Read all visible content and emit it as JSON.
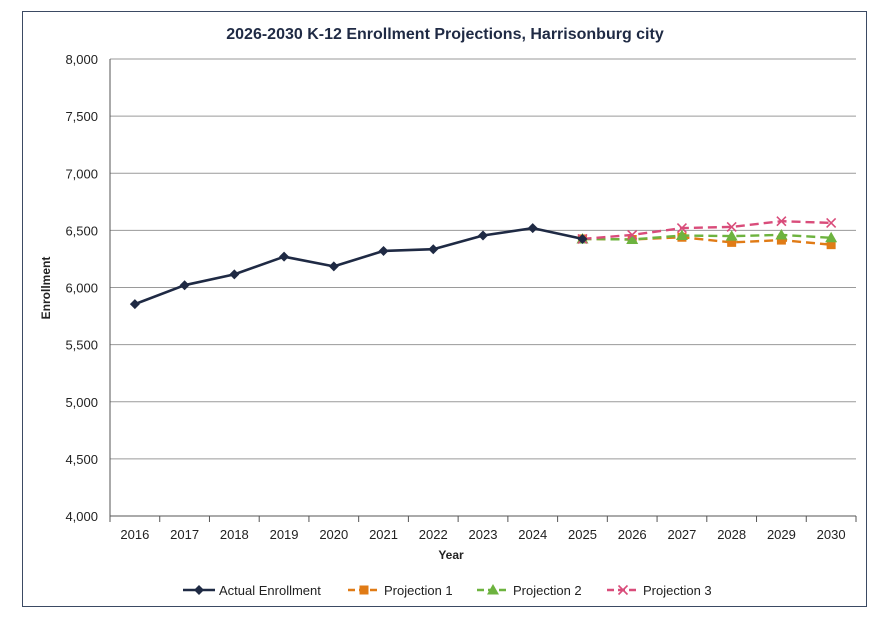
{
  "chart_data": {
    "type": "line",
    "title": "2026-2030 K-12 Enrollment Projections, Harrisonburg city",
    "xlabel": "Year",
    "ylabel": "Enrollment",
    "ylim": [
      4000,
      8000
    ],
    "y_ticks": [
      4000,
      4500,
      5000,
      5500,
      6000,
      6500,
      7000,
      7500,
      8000
    ],
    "y_tick_labels": [
      "4,000",
      "4,500",
      "5,000",
      "5,500",
      "6,000",
      "6,500",
      "7,000",
      "7,500",
      "8,000"
    ],
    "categories": [
      "2016",
      "2017",
      "2018",
      "2019",
      "2020",
      "2021",
      "2022",
      "2023",
      "2024",
      "2025",
      "2026",
      "2027",
      "2028",
      "2029",
      "2030"
    ],
    "grid": true,
    "legend_position": "bottom",
    "series": [
      {
        "name": "Actual Enrollment",
        "color": "#1f2a44",
        "dash": "solid",
        "marker": "diamond",
        "values": [
          5855,
          6020,
          6115,
          6270,
          6185,
          6320,
          6335,
          6455,
          6520,
          6425,
          null,
          null,
          null,
          null,
          null
        ]
      },
      {
        "name": "Projection 1",
        "color": "#e07b16",
        "dash": "dashed",
        "marker": "square",
        "values": [
          null,
          null,
          null,
          null,
          null,
          null,
          null,
          null,
          null,
          6425,
          6420,
          6440,
          6395,
          6415,
          6375
        ]
      },
      {
        "name": "Projection 2",
        "color": "#6db33f",
        "dash": "dashed",
        "marker": "triangle",
        "values": [
          null,
          null,
          null,
          null,
          null,
          null,
          null,
          null,
          null,
          6425,
          6420,
          6455,
          6450,
          6460,
          6435
        ]
      },
      {
        "name": "Projection 3",
        "color": "#d94c7a",
        "dash": "dashed",
        "marker": "x",
        "values": [
          null,
          null,
          null,
          null,
          null,
          null,
          null,
          null,
          null,
          6425,
          6460,
          6520,
          6530,
          6580,
          6565
        ]
      }
    ]
  }
}
